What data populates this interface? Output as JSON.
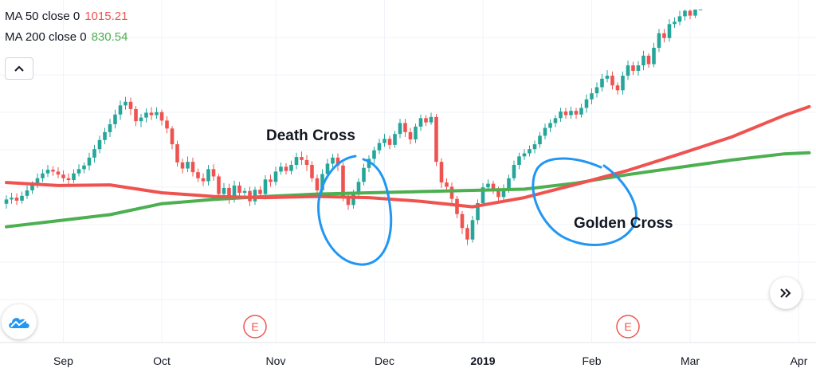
{
  "legend": {
    "ma50": {
      "label": "MA 50 close 0",
      "value": "1015.21",
      "color": "#ef5350"
    },
    "ma200": {
      "label": "MA 200 close 0",
      "value": "830.54",
      "color": "#4caf50"
    }
  },
  "annotations": {
    "death_cross": "Death Cross",
    "golden_cross": "Golden Cross"
  },
  "controls": {
    "collapse_icon": "chevron-up-icon",
    "scroll_icon": "double-chevron-right-icon",
    "logo_icon": "cloud-logo-icon"
  },
  "colors": {
    "up": "#26a69a",
    "down": "#ef5350",
    "ma50": "#ef5350",
    "ma200": "#4caf50",
    "circle": "#2196f3"
  },
  "chart_data": {
    "type": "candlestick",
    "x_axis_labels": [
      {
        "label": "Sep",
        "index": 11
      },
      {
        "label": "Oct",
        "index": 30
      },
      {
        "label": "Nov",
        "index": 52
      },
      {
        "label": "Dec",
        "index": 73
      },
      {
        "label": "2019",
        "index": 92,
        "bold": true
      },
      {
        "label": "Feb",
        "index": 113
      },
      {
        "label": "Mar",
        "index": 132
      },
      {
        "label": "Apr",
        "index": 153
      }
    ],
    "earnings_markers": [
      {
        "label": "E",
        "index": 48
      },
      {
        "label": "E",
        "index": 120
      }
    ],
    "ylim": [
      0,
      470
    ],
    "candles": [
      [
        150,
        157,
        164,
        142
      ],
      [
        157,
        160,
        168,
        150
      ],
      [
        160,
        155,
        167,
        148
      ],
      [
        155,
        163,
        170,
        150
      ],
      [
        163,
        172,
        180,
        158
      ],
      [
        172,
        181,
        187,
        166
      ],
      [
        181,
        192,
        200,
        176
      ],
      [
        192,
        200,
        207,
        186
      ],
      [
        200,
        206,
        214,
        194
      ],
      [
        206,
        203,
        212,
        196
      ],
      [
        203,
        198,
        210,
        192
      ],
      [
        198,
        192,
        205,
        186
      ],
      [
        192,
        189,
        200,
        182
      ],
      [
        189,
        200,
        207,
        184
      ],
      [
        200,
        207,
        215,
        195
      ],
      [
        207,
        213,
        218,
        200
      ],
      [
        213,
        226,
        234,
        205
      ],
      [
        226,
        240,
        247,
        218
      ],
      [
        240,
        255,
        262,
        233
      ],
      [
        255,
        268,
        275,
        248
      ],
      [
        268,
        281,
        290,
        260
      ],
      [
        281,
        297,
        305,
        274
      ],
      [
        297,
        312,
        320,
        288
      ],
      [
        312,
        318,
        326,
        305
      ],
      [
        318,
        306,
        325,
        296
      ],
      [
        306,
        286,
        311,
        278
      ],
      [
        286,
        292,
        298,
        276
      ],
      [
        292,
        300,
        307,
        284
      ],
      [
        300,
        296,
        309,
        288
      ],
      [
        296,
        301,
        309,
        290
      ],
      [
        301,
        287,
        305,
        279
      ],
      [
        287,
        274,
        294,
        266
      ],
      [
        274,
        248,
        278,
        240
      ],
      [
        248,
        218,
        254,
        211
      ],
      [
        218,
        208,
        224,
        200
      ],
      [
        208,
        219,
        228,
        202
      ],
      [
        219,
        202,
        226,
        195
      ],
      [
        202,
        192,
        208,
        186
      ],
      [
        192,
        187,
        200,
        179
      ],
      [
        187,
        207,
        214,
        180
      ],
      [
        207,
        195,
        215,
        188
      ],
      [
        195,
        166,
        199,
        158
      ],
      [
        166,
        176,
        184,
        160
      ],
      [
        176,
        158,
        183,
        150
      ],
      [
        158,
        180,
        188,
        152
      ],
      [
        180,
        168,
        186,
        160
      ],
      [
        168,
        171,
        176,
        160
      ],
      [
        171,
        154,
        178,
        146
      ],
      [
        154,
        173,
        178,
        148
      ],
      [
        173,
        166,
        179,
        158
      ],
      [
        166,
        190,
        197,
        160
      ],
      [
        190,
        186,
        198,
        178
      ],
      [
        186,
        203,
        211,
        180
      ],
      [
        203,
        211,
        218,
        198
      ],
      [
        211,
        204,
        217,
        198
      ],
      [
        204,
        214,
        221,
        198
      ],
      [
        214,
        227,
        234,
        207
      ],
      [
        227,
        222,
        236,
        214
      ],
      [
        222,
        214,
        230,
        204
      ],
      [
        214,
        192,
        220,
        186
      ],
      [
        192,
        172,
        198,
        166
      ],
      [
        172,
        199,
        207,
        167
      ],
      [
        199,
        216,
        224,
        192
      ],
      [
        216,
        226,
        232,
        208
      ],
      [
        226,
        213,
        233,
        204
      ],
      [
        213,
        162,
        218,
        154
      ],
      [
        162,
        148,
        168,
        140
      ],
      [
        148,
        165,
        173,
        142
      ],
      [
        165,
        186,
        192,
        158
      ],
      [
        186,
        209,
        216,
        180
      ],
      [
        209,
        224,
        230,
        202
      ],
      [
        224,
        238,
        244,
        216
      ],
      [
        238,
        250,
        257,
        232
      ],
      [
        250,
        257,
        265,
        244
      ],
      [
        257,
        247,
        262,
        240
      ],
      [
        247,
        265,
        270,
        242
      ],
      [
        265,
        283,
        290,
        258
      ],
      [
        283,
        268,
        290,
        260
      ],
      [
        268,
        256,
        275,
        248
      ],
      [
        256,
        277,
        282,
        250
      ],
      [
        277,
        291,
        297,
        270
      ],
      [
        291,
        284,
        296,
        278
      ],
      [
        284,
        293,
        300,
        280
      ],
      [
        293,
        219,
        298,
        212
      ],
      [
        219,
        185,
        225,
        176
      ],
      [
        185,
        178,
        192,
        170
      ],
      [
        178,
        158,
        185,
        150
      ],
      [
        158,
        133,
        163,
        126
      ],
      [
        133,
        110,
        138,
        100
      ],
      [
        110,
        91,
        116,
        82
      ],
      [
        91,
        123,
        130,
        86
      ],
      [
        123,
        151,
        157,
        116
      ],
      [
        151,
        177,
        184,
        145
      ],
      [
        177,
        183,
        190,
        170
      ],
      [
        183,
        172,
        188,
        166
      ],
      [
        172,
        161,
        178,
        154
      ],
      [
        161,
        175,
        182,
        154
      ],
      [
        175,
        192,
        198,
        168
      ],
      [
        192,
        214,
        221,
        188
      ],
      [
        214,
        228,
        234,
        207
      ],
      [
        228,
        233,
        240,
        222
      ],
      [
        233,
        240,
        246,
        228
      ],
      [
        240,
        248,
        254,
        233
      ],
      [
        248,
        262,
        268,
        242
      ],
      [
        262,
        275,
        282,
        256
      ],
      [
        275,
        283,
        289,
        268
      ],
      [
        283,
        291,
        296,
        276
      ],
      [
        291,
        302,
        308,
        285
      ],
      [
        302,
        296,
        308,
        290
      ],
      [
        296,
        303,
        310,
        290
      ],
      [
        303,
        297,
        308,
        290
      ],
      [
        297,
        308,
        315,
        292
      ],
      [
        308,
        322,
        330,
        300
      ],
      [
        322,
        332,
        340,
        314
      ],
      [
        332,
        342,
        350,
        325
      ],
      [
        342,
        356,
        364,
        335
      ],
      [
        356,
        361,
        370,
        350
      ],
      [
        361,
        345,
        368,
        338
      ],
      [
        345,
        337,
        350,
        330
      ],
      [
        337,
        361,
        368,
        330
      ],
      [
        361,
        378,
        386,
        354
      ],
      [
        378,
        369,
        384,
        362
      ],
      [
        369,
        378,
        385,
        361
      ],
      [
        378,
        394,
        402,
        370
      ],
      [
        394,
        380,
        398,
        374
      ],
      [
        380,
        407,
        415,
        375
      ],
      [
        407,
        431,
        438,
        400
      ],
      [
        431,
        423,
        438,
        416
      ],
      [
        423,
        446,
        454,
        417
      ],
      [
        446,
        450,
        457,
        440
      ],
      [
        450,
        459,
        468,
        444
      ],
      [
        459,
        468,
        470,
        452
      ],
      [
        468,
        460,
        470,
        454
      ],
      [
        460,
        470,
        470,
        456
      ],
      [
        470,
        470,
        470,
        470
      ]
    ],
    "ma50": [
      [
        0,
        185
      ],
      [
        10,
        180
      ],
      [
        20,
        181
      ],
      [
        30,
        168
      ],
      [
        40,
        162
      ],
      [
        50,
        160
      ],
      [
        60,
        162
      ],
      [
        70,
        160
      ],
      [
        80,
        154
      ],
      [
        90,
        145
      ],
      [
        100,
        160
      ],
      [
        110,
        182
      ],
      [
        120,
        205
      ],
      [
        130,
        232
      ],
      [
        140,
        260
      ],
      [
        150,
        295
      ],
      [
        155,
        310
      ]
    ],
    "ma200": [
      [
        0,
        112
      ],
      [
        10,
        122
      ],
      [
        20,
        132
      ],
      [
        30,
        150
      ],
      [
        40,
        157
      ],
      [
        50,
        162
      ],
      [
        60,
        166
      ],
      [
        70,
        168
      ],
      [
        80,
        170
      ],
      [
        90,
        172
      ],
      [
        100,
        174
      ],
      [
        110,
        184
      ],
      [
        120,
        198
      ],
      [
        130,
        210
      ],
      [
        140,
        222
      ],
      [
        150,
        232
      ],
      [
        155,
        234
      ]
    ]
  }
}
